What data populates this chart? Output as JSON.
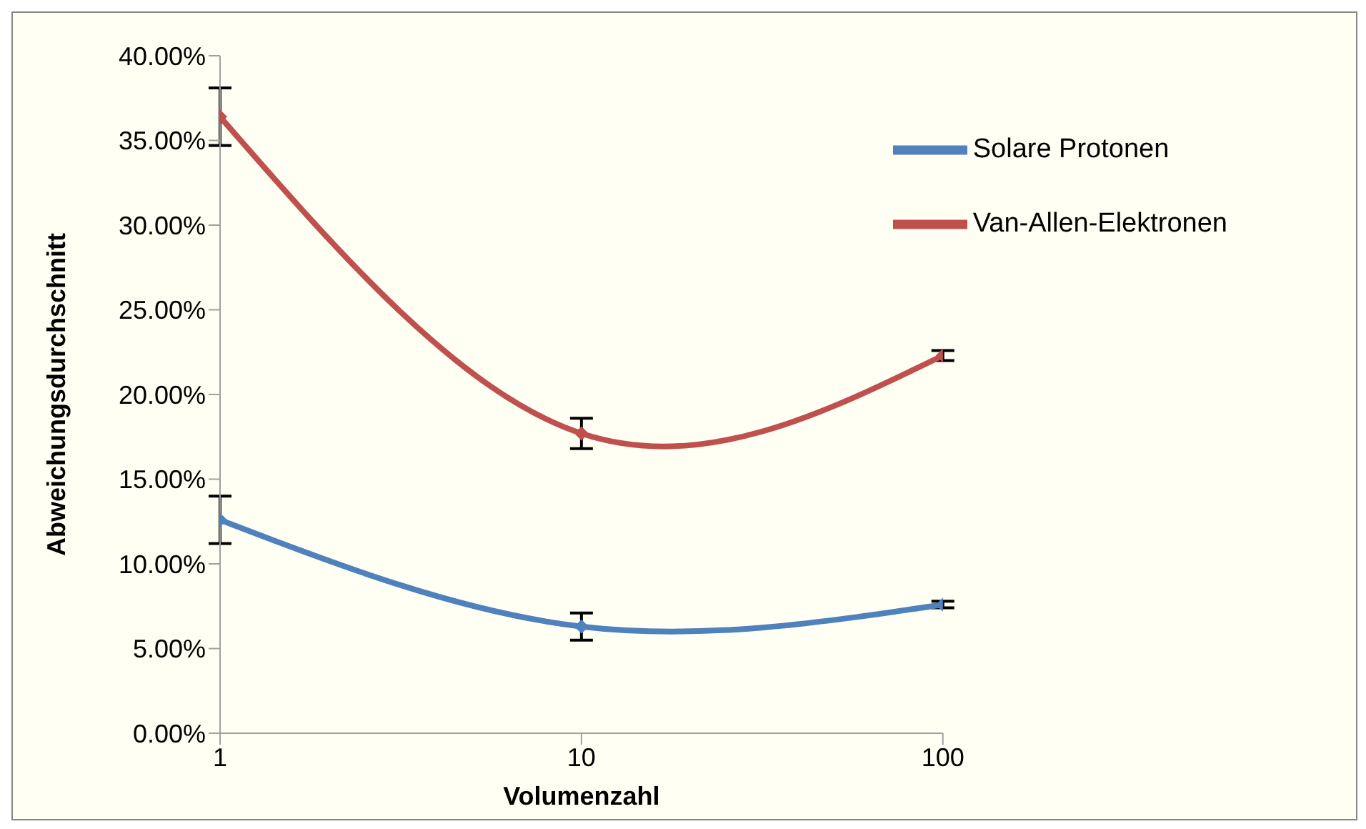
{
  "chart_data": {
    "type": "line",
    "xlabel": "Volumenzahl",
    "ylabel": "Abweichungsdurchschnitt",
    "log": "x",
    "x": [
      1,
      10,
      100
    ],
    "xlim": [
      1,
      100
    ],
    "xticks": [
      1,
      10,
      100
    ],
    "ylim": [
      0,
      40
    ],
    "yticks": [
      {
        "value": 0,
        "label": "0.00%"
      },
      {
        "value": 5,
        "label": "5.00%"
      },
      {
        "value": 10,
        "label": "10.00%"
      },
      {
        "value": 15,
        "label": "15.00%"
      },
      {
        "value": 20,
        "label": "20.00%"
      },
      {
        "value": 25,
        "label": "25.00%"
      },
      {
        "value": 30,
        "label": "30.00%"
      },
      {
        "value": 35,
        "label": "35.00%"
      },
      {
        "value": 40,
        "label": "40.00%"
      }
    ],
    "grid": false,
    "legend": "top right",
    "marker": "diamond",
    "line_style": "solid",
    "series": [
      {
        "name": "Solare Protonen",
        "color": "#4f81bd",
        "values": [
          12.6,
          6.3,
          7.6
        ],
        "errors": [
          1.4,
          0.8,
          0.2
        ]
      },
      {
        "name": "Van-Allen-Elektronen",
        "color": "#c0504d",
        "values": [
          36.4,
          17.7,
          22.3
        ],
        "errors": [
          1.7,
          0.9,
          0.3
        ]
      }
    ]
  }
}
